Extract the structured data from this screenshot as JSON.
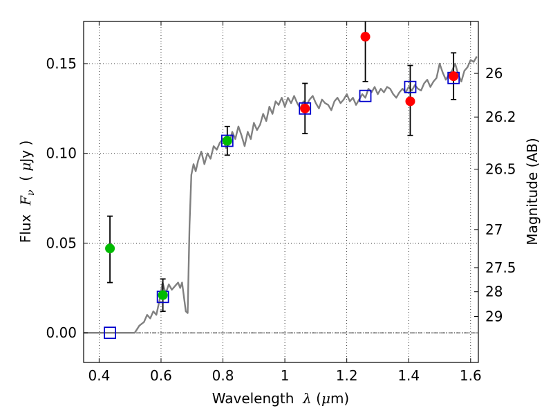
{
  "chart_data": {
    "type": "scatter",
    "xlabel": {
      "pre": "Wavelength  ",
      "sym": "λ",
      "post": " (",
      "unit_sym": "μ",
      "unit": "m)"
    },
    "ylabel": {
      "pre": "Flux  ",
      "sym": "F",
      "sub": "ν",
      "post": "  ( ",
      "unit_sym": "μ",
      "unit": "Jy )"
    },
    "ylabel_right": "Magnitude (AB)",
    "xlim": [
      0.35,
      1.625
    ],
    "ylim": [
      -0.0165,
      0.1735
    ],
    "grid": true,
    "x_ticks": [
      {
        "value": 0.4,
        "label": "0.4"
      },
      {
        "value": 0.6,
        "label": "0.6"
      },
      {
        "value": 0.8,
        "label": "0.8"
      },
      {
        "value": 1.0,
        "label": "1"
      },
      {
        "value": 1.2,
        "label": "1.2"
      },
      {
        "value": 1.4,
        "label": "1.4"
      },
      {
        "value": 1.6,
        "label": "1.6"
      }
    ],
    "y_ticks": [
      {
        "value": 0.0,
        "label": "0.00"
      },
      {
        "value": 0.05,
        "label": "0.05"
      },
      {
        "value": 0.1,
        "label": "0.10"
      },
      {
        "value": 0.15,
        "label": "0.15"
      }
    ],
    "right_ticks": [
      {
        "value": 26,
        "label": "26"
      },
      {
        "value": 26.2,
        "label": "26.2"
      },
      {
        "value": 26.5,
        "label": "26.5"
      },
      {
        "value": 27,
        "label": "27"
      },
      {
        "value": 27.5,
        "label": "27.5"
      },
      {
        "value": 28,
        "label": "28"
      },
      {
        "value": 29,
        "label": "29"
      }
    ],
    "zero_line": true,
    "model_spectrum": {
      "color": "#808080",
      "points": [
        [
          0.35,
          0.0
        ],
        [
          0.5,
          0.0
        ],
        [
          0.515,
          0.0
        ],
        [
          0.53,
          0.004
        ],
        [
          0.545,
          0.006
        ],
        [
          0.555,
          0.01
        ],
        [
          0.565,
          0.008
        ],
        [
          0.575,
          0.012
        ],
        [
          0.585,
          0.01
        ],
        [
          0.595,
          0.018
        ],
        [
          0.605,
          0.028
        ],
        [
          0.615,
          0.022
        ],
        [
          0.625,
          0.027
        ],
        [
          0.635,
          0.024
        ],
        [
          0.645,
          0.026
        ],
        [
          0.655,
          0.028
        ],
        [
          0.662,
          0.025
        ],
        [
          0.668,
          0.028
        ],
        [
          0.674,
          0.02
        ],
        [
          0.68,
          0.012
        ],
        [
          0.686,
          0.011
        ],
        [
          0.692,
          0.06
        ],
        [
          0.698,
          0.088
        ],
        [
          0.705,
          0.094
        ],
        [
          0.712,
          0.09
        ],
        [
          0.72,
          0.096
        ],
        [
          0.73,
          0.101
        ],
        [
          0.74,
          0.094
        ],
        [
          0.75,
          0.1
        ],
        [
          0.76,
          0.097
        ],
        [
          0.77,
          0.104
        ],
        [
          0.78,
          0.102
        ],
        [
          0.79,
          0.106
        ],
        [
          0.8,
          0.108
        ],
        [
          0.81,
          0.103
        ],
        [
          0.82,
          0.105
        ],
        [
          0.83,
          0.112
        ],
        [
          0.84,
          0.108
        ],
        [
          0.85,
          0.115
        ],
        [
          0.86,
          0.11
        ],
        [
          0.87,
          0.104
        ],
        [
          0.88,
          0.112
        ],
        [
          0.89,
          0.108
        ],
        [
          0.9,
          0.117
        ],
        [
          0.91,
          0.113
        ],
        [
          0.92,
          0.116
        ],
        [
          0.93,
          0.122
        ],
        [
          0.94,
          0.118
        ],
        [
          0.95,
          0.126
        ],
        [
          0.96,
          0.122
        ],
        [
          0.97,
          0.129
        ],
        [
          0.98,
          0.127
        ],
        [
          0.99,
          0.131
        ],
        [
          1.0,
          0.126
        ],
        [
          1.01,
          0.131
        ],
        [
          1.02,
          0.128
        ],
        [
          1.03,
          0.132
        ],
        [
          1.04,
          0.128
        ],
        [
          1.05,
          0.125
        ],
        [
          1.06,
          0.129
        ],
        [
          1.07,
          0.127
        ],
        [
          1.08,
          0.13
        ],
        [
          1.09,
          0.132
        ],
        [
          1.1,
          0.128
        ],
        [
          1.11,
          0.125
        ],
        [
          1.12,
          0.13
        ],
        [
          1.13,
          0.128
        ],
        [
          1.14,
          0.127
        ],
        [
          1.15,
          0.124
        ],
        [
          1.16,
          0.129
        ],
        [
          1.17,
          0.131
        ],
        [
          1.18,
          0.128
        ],
        [
          1.19,
          0.13
        ],
        [
          1.2,
          0.133
        ],
        [
          1.21,
          0.129
        ],
        [
          1.22,
          0.131
        ],
        [
          1.23,
          0.127
        ],
        [
          1.24,
          0.13
        ],
        [
          1.25,
          0.133
        ],
        [
          1.26,
          0.131
        ],
        [
          1.27,
          0.136
        ],
        [
          1.28,
          0.134
        ],
        [
          1.29,
          0.137
        ],
        [
          1.3,
          0.133
        ],
        [
          1.31,
          0.136
        ],
        [
          1.32,
          0.134
        ],
        [
          1.33,
          0.137
        ],
        [
          1.34,
          0.136
        ],
        [
          1.35,
          0.133
        ],
        [
          1.36,
          0.131
        ],
        [
          1.37,
          0.134
        ],
        [
          1.38,
          0.136
        ],
        [
          1.39,
          0.134
        ],
        [
          1.4,
          0.137
        ],
        [
          1.41,
          0.135
        ],
        [
          1.42,
          0.138
        ],
        [
          1.43,
          0.136
        ],
        [
          1.44,
          0.135
        ],
        [
          1.45,
          0.139
        ],
        [
          1.46,
          0.141
        ],
        [
          1.47,
          0.137
        ],
        [
          1.48,
          0.14
        ],
        [
          1.49,
          0.142
        ],
        [
          1.5,
          0.15
        ],
        [
          1.51,
          0.145
        ],
        [
          1.52,
          0.141
        ],
        [
          1.53,
          0.144
        ],
        [
          1.54,
          0.146
        ],
        [
          1.55,
          0.15
        ],
        [
          1.56,
          0.144
        ],
        [
          1.57,
          0.14
        ],
        [
          1.58,
          0.146
        ],
        [
          1.59,
          0.148
        ],
        [
          1.6,
          0.152
        ],
        [
          1.61,
          0.151
        ],
        [
          1.62,
          0.154
        ]
      ]
    },
    "model_photometry": {
      "color": "#0000cc",
      "x": [
        0.435,
        0.606,
        0.814,
        1.065,
        1.26,
        1.405,
        1.545
      ],
      "y": [
        0.0,
        0.02,
        0.107,
        0.125,
        0.132,
        0.137,
        0.142
      ]
    },
    "observed": [
      {
        "x": 0.435,
        "y": 0.047,
        "err_lo": 0.019,
        "err_hi": 0.018,
        "color": "#00bb00"
      },
      {
        "x": 0.606,
        "y": 0.021,
        "err_lo": 0.009,
        "err_hi": 0.009,
        "color": "#00bb00"
      },
      {
        "x": 0.814,
        "y": 0.107,
        "err_lo": 0.008,
        "err_hi": 0.008,
        "color": "#00bb00"
      },
      {
        "x": 1.065,
        "y": 0.125,
        "err_lo": 0.014,
        "err_hi": 0.014,
        "color": "#ff0000"
      },
      {
        "x": 1.26,
        "y": 0.165,
        "err_lo": 0.025,
        "err_hi": 0.012,
        "color": "#ff0000"
      },
      {
        "x": 1.405,
        "y": 0.129,
        "err_lo": 0.019,
        "err_hi": 0.02,
        "color": "#ff0000"
      },
      {
        "x": 1.545,
        "y": 0.143,
        "err_lo": 0.013,
        "err_hi": 0.013,
        "color": "#ff0000"
      }
    ]
  }
}
